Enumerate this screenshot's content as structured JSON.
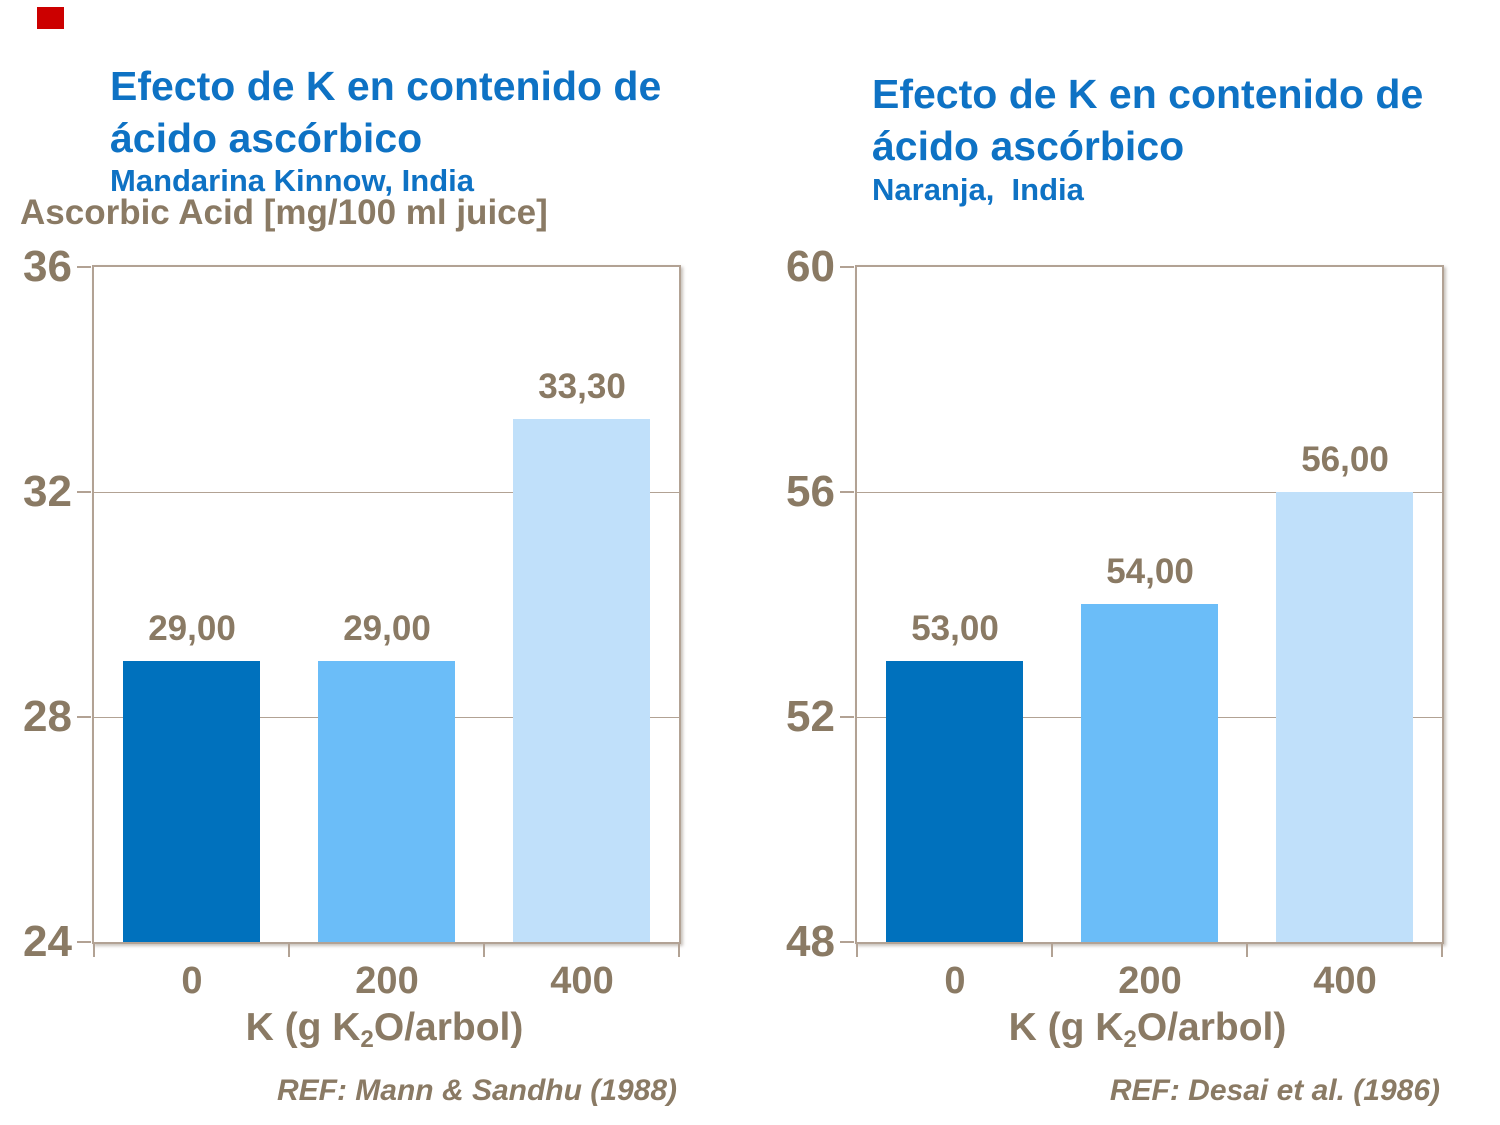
{
  "marker": {
    "color": "#cc0000"
  },
  "colors": {
    "title_blue": "#0e72c4",
    "text_brown": "#8a7a64",
    "axis_tan": "#b2a294"
  },
  "chart_data": [
    {
      "type": "bar",
      "title_line1": "Efecto de K en contenido de",
      "title_line2": "ácido ascórbico",
      "subtitle": "Mandarina Kinnow, India",
      "ylabel": "Ascorbic Acid [mg/100 ml juice]",
      "xlabel_pre": "K (g K",
      "xlabel_sub": "2",
      "xlabel_post": "O/arbol)",
      "categories": [
        "0",
        "200",
        "400"
      ],
      "values": [
        29,
        29,
        33.3
      ],
      "value_labels": [
        "29,00",
        "29,00",
        "33,30"
      ],
      "ylim": [
        24,
        36
      ],
      "yticks": [
        36,
        32,
        28,
        24
      ],
      "grid": true,
      "legend": false,
      "bar_colors": [
        "#0071bd",
        "#6bbdf8",
        "#c0e0fa"
      ],
      "ref": "REF: Mann & Sandhu (1988)"
    },
    {
      "type": "bar",
      "title_line1": "Efecto de K en contenido de",
      "title_line2": "ácido ascórbico",
      "subtitle": "Naranja,  India",
      "ylabel": "",
      "xlabel_pre": "K (g K",
      "xlabel_sub": "2",
      "xlabel_post": "O/arbol)",
      "categories": [
        "0",
        "200",
        "400"
      ],
      "values": [
        53,
        54,
        56
      ],
      "value_labels": [
        "53,00",
        "54,00",
        "56,00"
      ],
      "ylim": [
        48,
        60
      ],
      "yticks": [
        60,
        56,
        52,
        48
      ],
      "grid": true,
      "legend": false,
      "bar_colors": [
        "#0071bd",
        "#6bbdf8",
        "#c0e0fa"
      ],
      "ref": "REF: Desai et al. (1986)"
    }
  ]
}
